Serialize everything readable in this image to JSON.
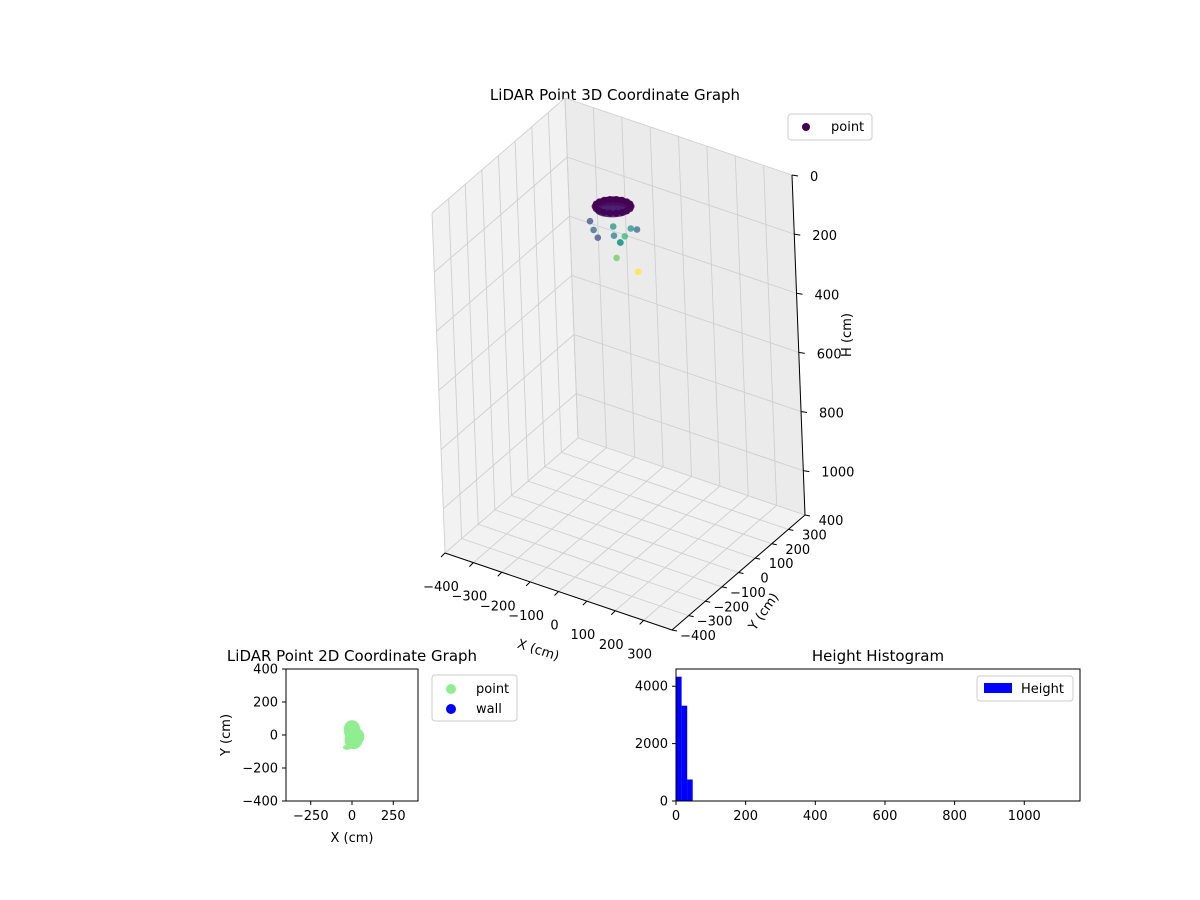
{
  "chart_data": [
    {
      "type": "scatter3d",
      "title": "LiDAR Point 3D Coordinate Graph",
      "xlabel": "X (cm)",
      "ylabel": "Y (cm)",
      "zlabel": "H (cm)",
      "xlim": [
        -400,
        400
      ],
      "ylim": [
        -400,
        400
      ],
      "zlim": [
        0,
        1150
      ],
      "z_inverted": true,
      "xticks": [
        -400,
        -300,
        -200,
        -100,
        0,
        100,
        200,
        300
      ],
      "yticks": [
        -400,
        -300,
        -200,
        -100,
        0,
        100,
        200,
        300,
        400
      ],
      "zticks": [
        0,
        200,
        400,
        600,
        800,
        1000
      ],
      "grid": true,
      "legend": {
        "position": "top-right",
        "entries": [
          {
            "label": "point",
            "color": "#440154"
          }
        ]
      },
      "colormap": "viridis (by height)",
      "series": [
        {
          "name": "point",
          "dense_cluster": {
            "center": [
              10,
              0,
              25
            ],
            "radius_x": 60,
            "radius_y": 60,
            "height_range": [
              0,
              60
            ]
          },
          "outliers": [
            {
              "x": -70,
              "y": -20,
              "z": 105,
              "color": "#3b528b"
            },
            {
              "x": -40,
              "y": -50,
              "z": 110,
              "color": "#31688e"
            },
            {
              "x": -20,
              "y": -60,
              "z": 125,
              "color": "#3b528b"
            },
            {
              "x": 20,
              "y": -30,
              "z": 120,
              "color": "#26828e"
            },
            {
              "x": 40,
              "y": 0,
              "z": 130,
              "color": "#35b779"
            },
            {
              "x": 50,
              "y": 20,
              "z": 110,
              "color": "#21918c"
            },
            {
              "x": 30,
              "y": -10,
              "z": 150,
              "color": "#21918c"
            },
            {
              "x": 20,
              "y": -20,
              "z": 200,
              "color": "#6ece58"
            },
            {
              "x": 70,
              "y": 20,
              "z": 250,
              "color": "#fde725"
            },
            {
              "x": 60,
              "y": 40,
              "z": 120,
              "color": "#31688e"
            },
            {
              "x": 0,
              "y": 0,
              "z": 110,
              "color": "#21918c"
            },
            {
              "x": 10,
              "y": 20,
              "z": 170,
              "color": "#1f9e89"
            }
          ]
        }
      ]
    },
    {
      "type": "scatter",
      "title": "LiDAR Point 2D Coordinate Graph",
      "xlabel": "X (cm)",
      "ylabel": "Y (cm)",
      "xlim": [
        -400,
        400
      ],
      "ylim": [
        -400,
        400
      ],
      "xticks": [
        -250,
        0,
        250
      ],
      "yticks": [
        -400,
        -200,
        0,
        200,
        400
      ],
      "legend": {
        "position": "outside-right",
        "entries": [
          {
            "label": "point",
            "color": "#90ee90"
          },
          {
            "label": "wall",
            "color": "#0000ff"
          }
        ]
      },
      "series": [
        {
          "name": "point",
          "color": "#90ee90",
          "blobs": [
            {
              "x": 0,
              "y": 30,
              "rx": 50,
              "ry": 60
            },
            {
              "x": 10,
              "y": -30,
              "rx": 55,
              "ry": 55
            },
            {
              "x": -30,
              "y": -75,
              "rx": 25,
              "ry": 15
            },
            {
              "x": 30,
              "y": -10,
              "rx": 45,
              "ry": 50
            }
          ]
        },
        {
          "name": "wall",
          "color": "#0000ff",
          "points": []
        }
      ]
    },
    {
      "type": "histogram",
      "title": "Height Histogram",
      "xlabel": "",
      "ylabel": "",
      "xlim": [
        0,
        1160
      ],
      "ylim": [
        0,
        4600
      ],
      "xticks": [
        0,
        200,
        400,
        600,
        800,
        1000
      ],
      "yticks": [
        0,
        2000,
        4000
      ],
      "legend": {
        "position": "top-right",
        "entries": [
          {
            "label": "Height",
            "color": "#0000ff"
          }
        ]
      },
      "color": "#0000ff",
      "bins": [
        {
          "start": 0,
          "end": 16,
          "count": 4330
        },
        {
          "start": 16,
          "end": 32,
          "count": 3320
        },
        {
          "start": 32,
          "end": 48,
          "count": 750
        },
        {
          "start": 48,
          "end": 64,
          "count": 10
        }
      ]
    }
  ]
}
